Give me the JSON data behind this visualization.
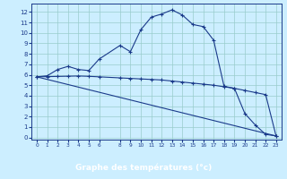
{
  "x": [
    0,
    1,
    2,
    3,
    4,
    5,
    6,
    8,
    9,
    10,
    11,
    12,
    13,
    14,
    15,
    16,
    17,
    18,
    19,
    20,
    21,
    22,
    23
  ],
  "temp": [
    5.8,
    5.9,
    6.5,
    6.8,
    6.5,
    6.4,
    7.5,
    8.8,
    8.2,
    10.3,
    11.5,
    11.8,
    12.2,
    11.7,
    10.8,
    10.6,
    9.3,
    4.9,
    4.7,
    2.3,
    1.2,
    0.3,
    0.15
  ],
  "line2_x": [
    0,
    1,
    2,
    3,
    4,
    5,
    6,
    8,
    9,
    10,
    11,
    12,
    13,
    14,
    15,
    16,
    17,
    18,
    19,
    20,
    21,
    22,
    23
  ],
  "line2_y": [
    5.8,
    5.82,
    5.84,
    5.86,
    5.88,
    5.85,
    5.8,
    5.7,
    5.65,
    5.6,
    5.55,
    5.5,
    5.4,
    5.3,
    5.2,
    5.1,
    5.0,
    4.85,
    4.7,
    4.5,
    4.3,
    4.1,
    0.15
  ],
  "line3_x": [
    0,
    23
  ],
  "line3_y": [
    5.8,
    0.15
  ],
  "color": "#1a3a8a",
  "bg_color": "#cceeff",
  "grid_color": "#99cccc",
  "xlabel": "Graphe des températures (°c)",
  "xlabel_bg": "#2255bb",
  "xlabel_color": "#ffffff",
  "yticks": [
    0,
    1,
    2,
    3,
    4,
    5,
    6,
    7,
    8,
    9,
    10,
    11,
    12
  ],
  "xtick_labels": [
    "0",
    "1",
    "2",
    "3",
    "4",
    "5",
    "6",
    "8",
    "9",
    "10",
    "11",
    "12",
    "13",
    "14",
    "15",
    "16",
    "17",
    "18",
    "19",
    "20",
    "21",
    "22",
    "23"
  ],
  "xtick_pos": [
    0,
    1,
    2,
    3,
    4,
    5,
    6,
    8,
    9,
    10,
    11,
    12,
    13,
    14,
    15,
    16,
    17,
    18,
    19,
    20,
    21,
    22,
    23
  ],
  "ylim": [
    -0.2,
    12.8
  ],
  "xlim": [
    -0.5,
    23.5
  ]
}
